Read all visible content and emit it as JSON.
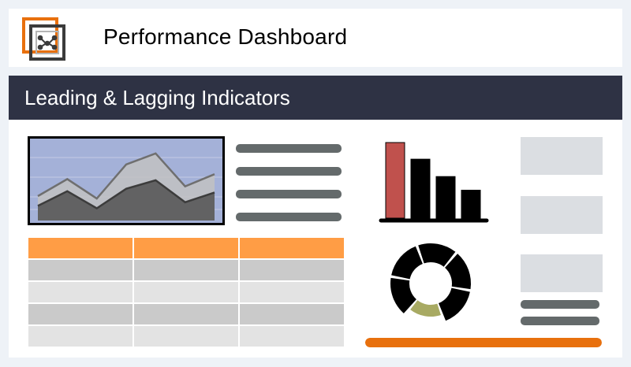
{
  "header": {
    "title": "Performance Dashboard",
    "logo": "dashboard-grid-logo"
  },
  "section": {
    "title": "Leading & Lagging Indicators"
  },
  "colors": {
    "page_background": "#eef2f7",
    "section_bar": "#2e3244",
    "accent_orange": "#ff9d45",
    "accent_dark_orange": "#e8700d",
    "bar_highlight": "#c0514d",
    "donut_accent": "#a8aa63",
    "line_gray": "#646a6b",
    "placeholder_gray": "#dbdee2",
    "area_panel_bg": "#a4b1d8"
  },
  "placeholder_lines": {
    "left_list_count": 4,
    "right_list_count": 2
  },
  "table": {
    "columns": 3,
    "header_color": "#ff9d45",
    "row_colors": [
      "#cacaca",
      "#e3e3e3",
      "#cacaca",
      "#e3e3e3"
    ]
  },
  "chart_data": [
    {
      "type": "area",
      "series": [
        {
          "values": [
            20,
            34,
            18,
            46,
            55,
            28,
            38
          ]
        },
        {
          "values": [
            12,
            24,
            10,
            26,
            33,
            15,
            23
          ]
        }
      ]
    },
    {
      "type": "bar",
      "values": [
        100,
        78,
        55,
        37
      ],
      "highlight_index": 0
    },
    {
      "type": "pie",
      "values": [
        82,
        18
      ],
      "colors": [
        "#000000",
        "#a8aa63"
      ]
    }
  ],
  "progress": {
    "value": 1.0
  }
}
